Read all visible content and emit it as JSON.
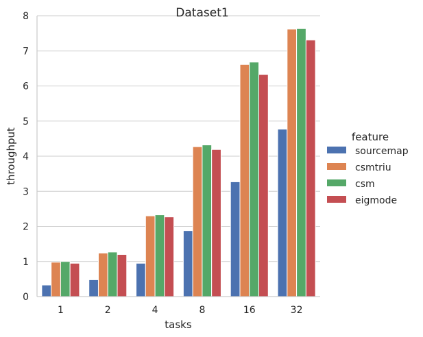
{
  "chart_data": {
    "type": "bar",
    "title": "Dataset1",
    "xlabel": "tasks",
    "ylabel": "throughput",
    "categories": [
      "1",
      "2",
      "4",
      "8",
      "16",
      "32"
    ],
    "ylim": [
      0,
      8
    ],
    "yticks": [
      "0",
      "1",
      "2",
      "3",
      "4",
      "5",
      "6",
      "7",
      "8"
    ],
    "grid": "horizontal",
    "legend": {
      "title": "feature",
      "placement": "right"
    },
    "series": [
      {
        "name": "sourcemap",
        "color": "#4c72b0",
        "values": [
          0.33,
          0.48,
          0.95,
          1.88,
          3.27,
          4.77
        ]
      },
      {
        "name": "csmtriu",
        "color": "#dd8452",
        "values": [
          0.98,
          1.24,
          2.3,
          4.27,
          6.61,
          7.62
        ]
      },
      {
        "name": "csm",
        "color": "#55a868",
        "values": [
          1.0,
          1.27,
          2.33,
          4.32,
          6.68,
          7.64
        ]
      },
      {
        "name": "eigmode",
        "color": "#c44e52",
        "values": [
          0.95,
          1.2,
          2.27,
          4.19,
          6.33,
          7.31
        ]
      }
    ]
  }
}
